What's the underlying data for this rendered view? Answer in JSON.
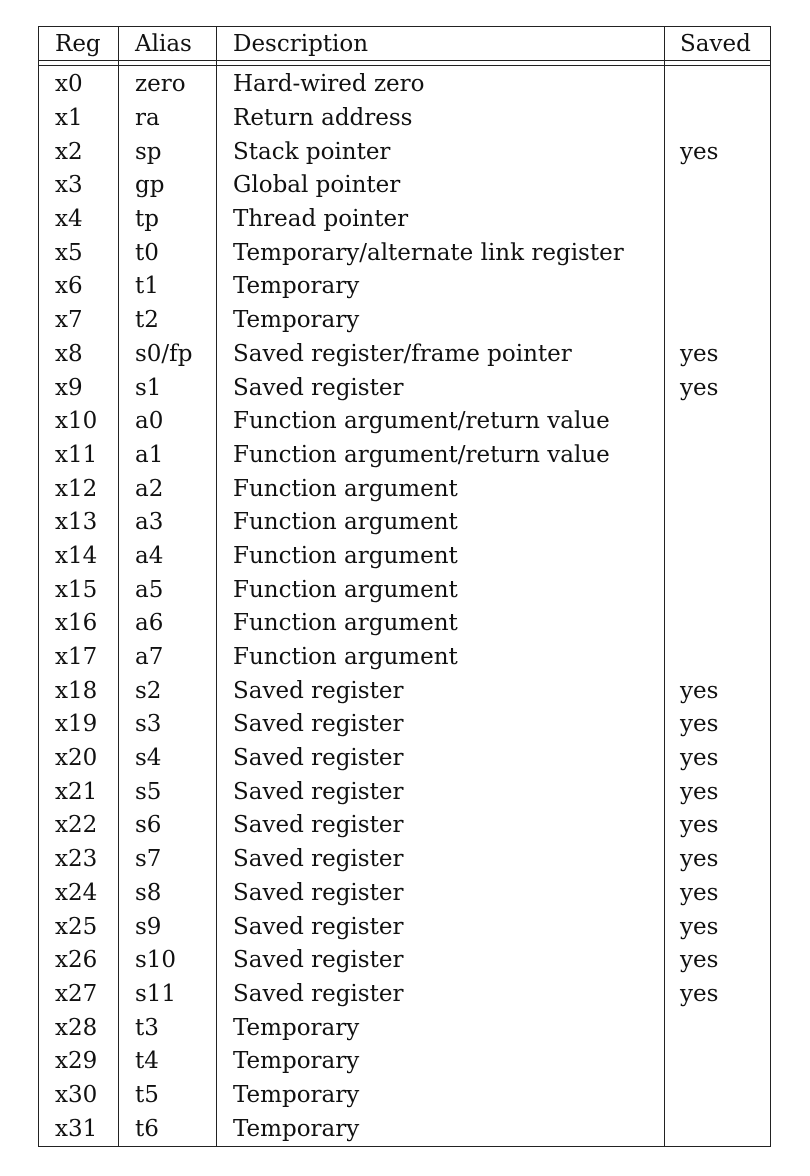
{
  "table": {
    "headers": {
      "reg": "Reg",
      "alias": "Alias",
      "description": "Description",
      "saved": "Saved"
    },
    "rows": [
      {
        "reg": "x0",
        "alias": "zero",
        "description": "Hard-wired zero",
        "saved": ""
      },
      {
        "reg": "x1",
        "alias": "ra",
        "description": "Return address",
        "saved": ""
      },
      {
        "reg": "x2",
        "alias": "sp",
        "description": "Stack pointer",
        "saved": "yes"
      },
      {
        "reg": "x3",
        "alias": "gp",
        "description": "Global pointer",
        "saved": ""
      },
      {
        "reg": "x4",
        "alias": "tp",
        "description": "Thread pointer",
        "saved": ""
      },
      {
        "reg": "x5",
        "alias": "t0",
        "description": "Temporary/alternate link register",
        "saved": ""
      },
      {
        "reg": "x6",
        "alias": "t1",
        "description": "Temporary",
        "saved": ""
      },
      {
        "reg": "x7",
        "alias": "t2",
        "description": "Temporary",
        "saved": ""
      },
      {
        "reg": "x8",
        "alias": "s0/fp",
        "description": "Saved register/frame pointer",
        "saved": "yes"
      },
      {
        "reg": "x9",
        "alias": "s1",
        "description": "Saved register",
        "saved": "yes"
      },
      {
        "reg": "x10",
        "alias": "a0",
        "description": "Function argument/return value",
        "saved": ""
      },
      {
        "reg": "x11",
        "alias": "a1",
        "description": "Function argument/return value",
        "saved": ""
      },
      {
        "reg": "x12",
        "alias": "a2",
        "description": "Function argument",
        "saved": ""
      },
      {
        "reg": "x13",
        "alias": "a3",
        "description": "Function argument",
        "saved": ""
      },
      {
        "reg": "x14",
        "alias": "a4",
        "description": "Function argument",
        "saved": ""
      },
      {
        "reg": "x15",
        "alias": "a5",
        "description": "Function argument",
        "saved": ""
      },
      {
        "reg": "x16",
        "alias": "a6",
        "description": "Function argument",
        "saved": ""
      },
      {
        "reg": "x17",
        "alias": "a7",
        "description": "Function argument",
        "saved": ""
      },
      {
        "reg": "x18",
        "alias": "s2",
        "description": "Saved register",
        "saved": "yes"
      },
      {
        "reg": "x19",
        "alias": "s3",
        "description": "Saved register",
        "saved": "yes"
      },
      {
        "reg": "x20",
        "alias": "s4",
        "description": "Saved register",
        "saved": "yes"
      },
      {
        "reg": "x21",
        "alias": "s5",
        "description": "Saved register",
        "saved": "yes"
      },
      {
        "reg": "x22",
        "alias": "s6",
        "description": "Saved register",
        "saved": "yes"
      },
      {
        "reg": "x23",
        "alias": "s7",
        "description": "Saved register",
        "saved": "yes"
      },
      {
        "reg": "x24",
        "alias": "s8",
        "description": "Saved register",
        "saved": "yes"
      },
      {
        "reg": "x25",
        "alias": "s9",
        "description": "Saved register",
        "saved": "yes"
      },
      {
        "reg": "x26",
        "alias": "s10",
        "description": "Saved register",
        "saved": "yes"
      },
      {
        "reg": "x27",
        "alias": "s11",
        "description": "Saved register",
        "saved": "yes"
      },
      {
        "reg": "x28",
        "alias": "t3",
        "description": "Temporary",
        "saved": ""
      },
      {
        "reg": "x29",
        "alias": "t4",
        "description": "Temporary",
        "saved": ""
      },
      {
        "reg": "x30",
        "alias": "t5",
        "description": "Temporary",
        "saved": ""
      },
      {
        "reg": "x31",
        "alias": "t6",
        "description": "Temporary",
        "saved": ""
      }
    ]
  }
}
